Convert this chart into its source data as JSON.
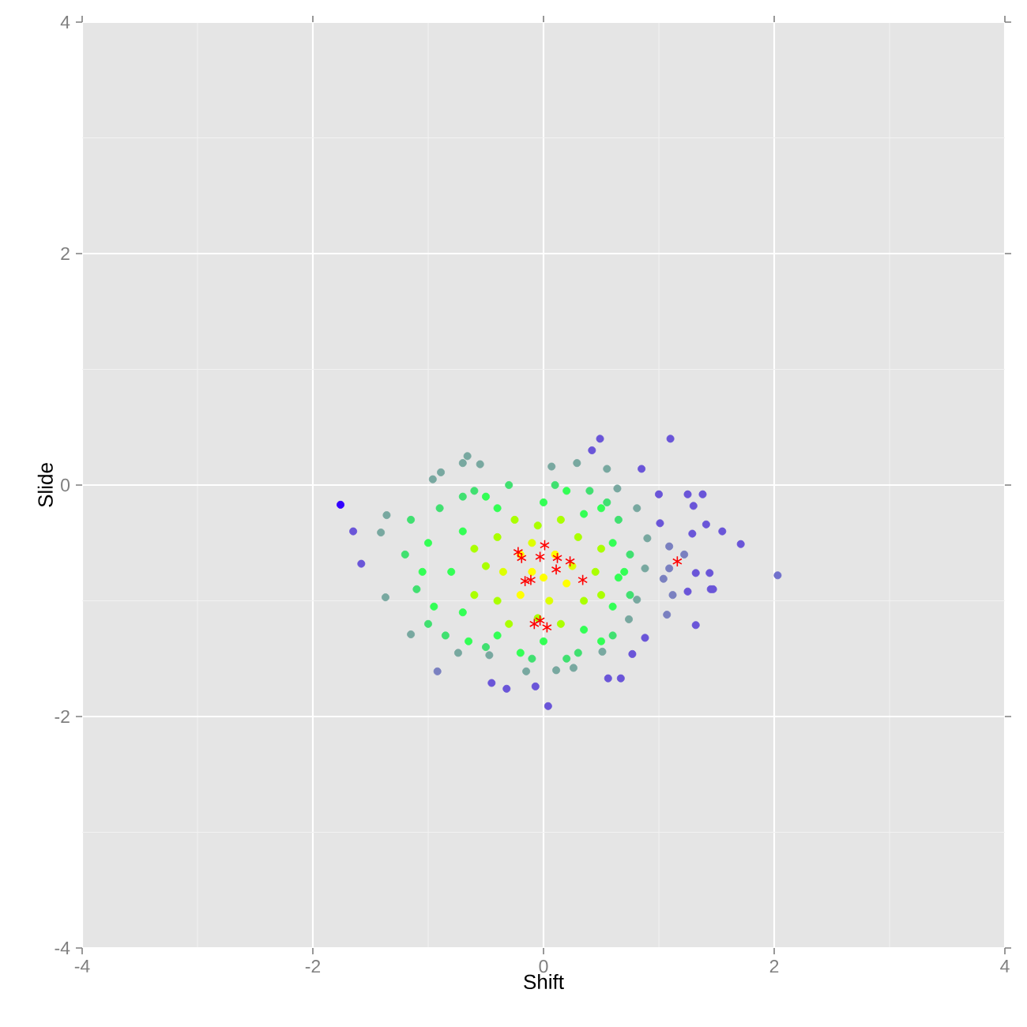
{
  "chart_data": {
    "type": "scatter",
    "xlabel": "Shift",
    "ylabel": "Slide",
    "xlim": [
      -4,
      4
    ],
    "ylim": [
      -4,
      4
    ],
    "xticks": [
      -4,
      -2,
      0,
      2,
      4
    ],
    "yticks": [
      -4,
      -2,
      0,
      2,
      4
    ],
    "grid": true,
    "series": [
      {
        "marker": "circle",
        "x": [
          -1.76,
          -1.65,
          -1.58,
          0.49,
          1.1,
          0.42,
          0.85,
          2.03,
          1.71,
          1.45,
          1.32,
          0.88,
          0.77,
          0.67,
          0.56,
          0.04,
          -0.32,
          -0.45,
          -0.92,
          -0.07,
          1.38,
          1.25,
          1.0,
          1.3,
          1.41,
          1.55,
          1.29,
          1.01,
          1.22,
          1.32,
          1.44,
          1.47,
          1.25,
          1.12,
          1.07,
          1.04,
          1.09,
          1.09,
          -0.89,
          -0.7,
          -0.66,
          -0.55,
          0.07,
          0.29,
          0.55,
          0.64,
          -1.36,
          -1.41,
          -1.37,
          -1.15,
          -0.74,
          -0.47,
          -0.15,
          0.11,
          0.26,
          0.51,
          0.81,
          0.9,
          0.88,
          0.81,
          0.74,
          -0.96,
          -1.2,
          -1.1,
          -1.0,
          -0.9,
          -0.6,
          -0.3,
          0.1,
          0.4,
          0.65,
          0.75,
          0.75,
          0.6,
          0.3,
          -0.1,
          -0.5,
          -0.85,
          -1.15,
          0.2,
          0.55,
          -0.7,
          -0.8,
          -0.7,
          -0.7,
          -0.4,
          -0.4,
          0.0,
          0.0,
          0.35,
          0.35,
          0.6,
          0.65,
          0.6,
          -0.5,
          -0.4,
          -0.4,
          0.3,
          0.35,
          0.45,
          -0.05,
          -0.05,
          -0.2,
          0.0,
          0.2,
          -0.2,
          0.1,
          -0.1,
          -1.0,
          -0.95,
          -0.5,
          0.2,
          0.5,
          0.7,
          0.5,
          -0.2,
          -0.65,
          -1.05,
          -0.6,
          -0.6,
          -0.25,
          0.15,
          0.5,
          0.5,
          0.15,
          -0.3,
          -0.35,
          0.25,
          0.05,
          -0.1
        ],
        "values": [
          -0.17,
          -0.4,
          -0.68,
          0.4,
          0.4,
          0.3,
          0.14,
          -0.78,
          -0.51,
          -0.9,
          -1.21,
          -1.32,
          -1.46,
          -1.67,
          -1.67,
          -1.91,
          -1.76,
          -1.71,
          -1.61,
          -1.74,
          -0.08,
          -0.08,
          -0.08,
          -0.18,
          -0.34,
          -0.4,
          -0.42,
          -0.33,
          -0.6,
          -0.76,
          -0.76,
          -0.9,
          -0.92,
          -0.95,
          -1.12,
          -0.81,
          -0.72,
          -0.53,
          0.11,
          0.19,
          0.25,
          0.18,
          0.16,
          0.19,
          0.14,
          -0.03,
          -0.26,
          -0.41,
          -0.97,
          -1.29,
          -1.45,
          -1.47,
          -1.61,
          -1.6,
          -1.58,
          -1.44,
          -0.2,
          -0.46,
          -0.72,
          -0.99,
          -1.16,
          0.05,
          -0.6,
          -0.9,
          -1.2,
          -0.2,
          -0.05,
          0.0,
          0.0,
          -0.05,
          -0.3,
          -0.6,
          -0.95,
          -1.3,
          -1.45,
          -1.5,
          -1.4,
          -1.3,
          -0.3,
          -1.5,
          -0.15,
          -0.1,
          -0.75,
          -0.4,
          -1.1,
          -0.2,
          -1.3,
          -0.15,
          -1.35,
          -0.25,
          -1.25,
          -0.5,
          -0.8,
          -1.05,
          -0.7,
          -0.45,
          -1.0,
          -0.45,
          -1.0,
          -0.75,
          -0.35,
          -1.15,
          -0.6,
          -0.8,
          -0.85,
          -0.95,
          -0.6,
          -0.75,
          -0.5,
          -1.05,
          -0.1,
          -0.05,
          -0.2,
          -0.75,
          -1.35,
          -1.45,
          -1.35,
          -0.75,
          -0.55,
          -0.95,
          -0.3,
          -0.3,
          -0.55,
          -0.95,
          -1.2,
          -1.2,
          -0.75,
          -0.7,
          -1.0,
          -0.5
        ],
        "colors": [
          "#3300ff",
          "#6a55d8",
          "#6a55d8",
          "#6a55d8",
          "#6a55d8",
          "#6a55d8",
          "#6a55d8",
          "#7070cc",
          "#6a55d8",
          "#6a55d8",
          "#6a55d8",
          "#6a55d8",
          "#6a55d8",
          "#6a55d8",
          "#6a55d8",
          "#6a55d8",
          "#6a55d8",
          "#6a55d8",
          "#7a80c0",
          "#6a55d8",
          "#6a55d8",
          "#6a55d8",
          "#6a55d8",
          "#6a55d8",
          "#6a55d8",
          "#6a55d8",
          "#6a55d8",
          "#6a55d8",
          "#7a80c0",
          "#6a55d8",
          "#6a55d8",
          "#6a55d8",
          "#6a55d8",
          "#7a80c0",
          "#7a80c0",
          "#7a80c0",
          "#7a80c0",
          "#7a80c0",
          "#78a8a0",
          "#78a8a0",
          "#78a8a0",
          "#78a8a0",
          "#78a8a0",
          "#78a8a0",
          "#78a8a0",
          "#78a8a0",
          "#78a8a0",
          "#78a8a0",
          "#78a8a0",
          "#78a8a0",
          "#78a8a0",
          "#78a8a0",
          "#78a8a0",
          "#78a8a0",
          "#78a8a0",
          "#78a8a0",
          "#78a8a0",
          "#78a8a0",
          "#78a8a0",
          "#78a8a0",
          "#78a8a0",
          "#78a8a0",
          "#40e070",
          "#40e070",
          "#40e070",
          "#40e070",
          "#40e070",
          "#40e070",
          "#40e070",
          "#40e070",
          "#40e070",
          "#40e070",
          "#40e070",
          "#40e070",
          "#40e070",
          "#40e070",
          "#40e070",
          "#40e070",
          "#40e070",
          "#40e070",
          "#40e070",
          "#40e070",
          "#33ff55",
          "#33ff55",
          "#33ff55",
          "#33ff55",
          "#33ff55",
          "#33ff55",
          "#33ff55",
          "#33ff55",
          "#33ff55",
          "#33ff55",
          "#33ff55",
          "#33ff55",
          "#aaff00",
          "#aaff00",
          "#aaff00",
          "#aaff00",
          "#aaff00",
          "#aaff00",
          "#aaff00",
          "#aaff00",
          "#ffff00",
          "#ffff00",
          "#ffff00",
          "#ffff00",
          "#ffff00",
          "#ffff00",
          "#33ff55",
          "#33ff55",
          "#33ff55",
          "#33ff55",
          "#33ff55",
          "#33ff55",
          "#33ff55",
          "#33ff55",
          "#33ff55",
          "#33ff55",
          "#aaff00",
          "#aaff00",
          "#aaff00",
          "#aaff00",
          "#aaff00",
          "#aaff00",
          "#aaff00",
          "#aaff00",
          "#ddff00",
          "#ddff00",
          "#ddff00",
          "#ddff00"
        ]
      },
      {
        "marker": "cross",
        "color": "#ff0000",
        "x": [
          0.01,
          -0.22,
          -0.19,
          -0.03,
          0.12,
          0.23,
          0.11,
          0.34,
          -0.16,
          -0.11,
          -0.03,
          -0.08,
          0.03,
          1.16
        ],
        "values": [
          -0.52,
          -0.58,
          -0.63,
          -0.62,
          -0.63,
          -0.66,
          -0.73,
          -0.82,
          -0.83,
          -0.82,
          -1.17,
          -1.2,
          -1.23,
          -0.66
        ]
      }
    ]
  }
}
